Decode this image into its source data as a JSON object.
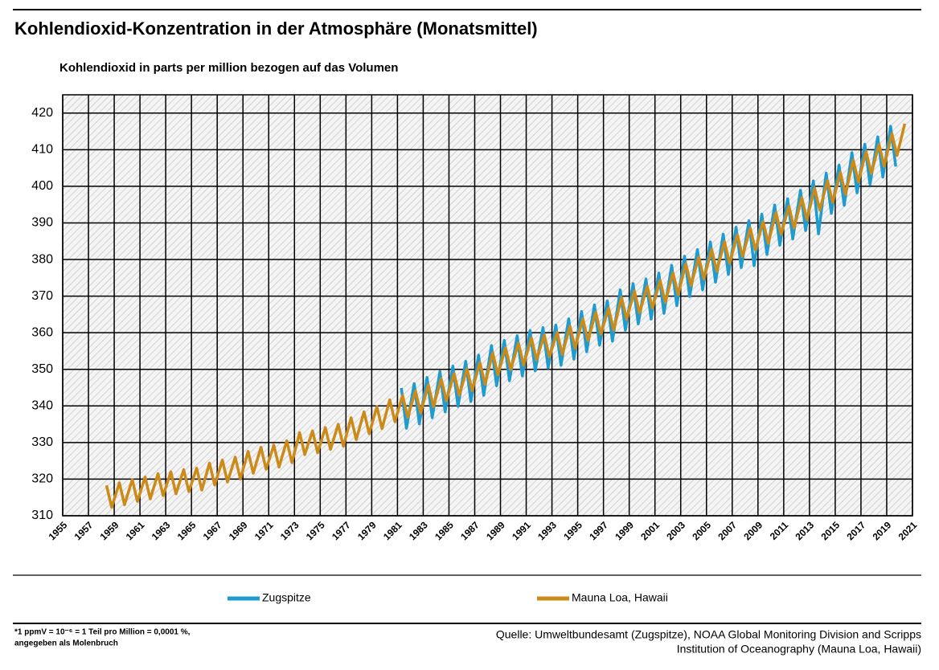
{
  "chart_data": {
    "type": "line",
    "title": "Kohlendioxid-Konzentration in der Atmosphäre (Monatsmittel)",
    "y_label": "Kohlendioxid in parts per million bezogen auf das Volumen",
    "xlim": [
      1955,
      2021
    ],
    "xticks": [
      1955,
      1957,
      1959,
      1961,
      1963,
      1965,
      1967,
      1969,
      1971,
      1973,
      1975,
      1977,
      1979,
      1981,
      1983,
      1985,
      1987,
      1989,
      1991,
      1993,
      1995,
      1997,
      1999,
      2001,
      2003,
      2005,
      2007,
      2009,
      2011,
      2013,
      2015,
      2017,
      2019,
      2021
    ],
    "ylim": [
      310,
      425
    ],
    "yticks": [
      310,
      320,
      330,
      340,
      350,
      360,
      370,
      380,
      390,
      400,
      410,
      420
    ],
    "grid": true,
    "series": [
      {
        "name": "Zugspitze",
        "color": "#1f9bcf",
        "x": [
          1981.3,
          1981.7,
          1982.3,
          1982.7,
          1983.3,
          1983.7,
          1984.3,
          1984.7,
          1985.3,
          1985.7,
          1986.3,
          1986.7,
          1987.3,
          1987.7,
          1988.3,
          1988.7,
          1989.3,
          1989.7,
          1990.3,
          1990.7,
          1991.3,
          1991.7,
          1992.3,
          1992.7,
          1993.3,
          1993.7,
          1994.3,
          1994.7,
          1995.3,
          1995.7,
          1996.3,
          1996.7,
          1997.3,
          1997.7,
          1998.3,
          1998.7,
          1999.3,
          1999.7,
          2000.3,
          2000.7,
          2001.3,
          2001.7,
          2002.3,
          2002.7,
          2003.3,
          2003.7,
          2004.3,
          2004.7,
          2005.3,
          2005.7,
          2006.3,
          2006.7,
          2007.3,
          2007.7,
          2008.3,
          2008.7,
          2009.3,
          2009.7,
          2010.3,
          2010.7,
          2011.3,
          2011.7,
          2012.3,
          2012.7,
          2013.3,
          2013.7,
          2014.3,
          2014.7,
          2015.3,
          2015.7,
          2016.3,
          2016.7,
          2017.3,
          2017.7,
          2018.3,
          2018.7,
          2019.3,
          2019.7
        ],
        "values": [
          344.9,
          333.9,
          346.1,
          335.1,
          347.8,
          336.8,
          349.4,
          338.4,
          350.9,
          339.9,
          352.2,
          341.2,
          353.9,
          342.9,
          356.5,
          345.5,
          357.9,
          346.9,
          359.2,
          348.2,
          360.6,
          349.6,
          361.4,
          350.4,
          362.1,
          351.1,
          363.8,
          352.8,
          365.8,
          354.8,
          367.6,
          356.6,
          368.7,
          357.7,
          371.7,
          360.7,
          373.4,
          362.4,
          374.7,
          363.7,
          376.3,
          365.3,
          378.4,
          367.4,
          380.9,
          369.9,
          382.7,
          371.7,
          384.8,
          373.8,
          386.9,
          375.9,
          388.8,
          377.8,
          390.6,
          378.3,
          392.4,
          381.4,
          394.9,
          383.9,
          396.6,
          385.6,
          398.9,
          387.9,
          401.5,
          387.0,
          403.6,
          392.6,
          405.8,
          394.8,
          409.2,
          398.2,
          411.5,
          400.5,
          413.5,
          402.5,
          416.4,
          405.4
        ]
      },
      {
        "name": "Mauna Loa, Hawaii",
        "color": "#cc8a18",
        "x": [
          1958.4,
          1958.8,
          1959.4,
          1959.8,
          1960.4,
          1960.8,
          1961.4,
          1961.8,
          1962.4,
          1962.8,
          1963.4,
          1963.8,
          1964.4,
          1964.8,
          1965.4,
          1965.8,
          1966.4,
          1966.8,
          1967.4,
          1967.8,
          1968.4,
          1968.8,
          1969.4,
          1969.8,
          1970.4,
          1970.8,
          1971.4,
          1971.8,
          1972.4,
          1972.8,
          1973.4,
          1973.8,
          1974.4,
          1974.8,
          1975.4,
          1975.8,
          1976.4,
          1976.8,
          1977.4,
          1977.8,
          1978.4,
          1978.8,
          1979.4,
          1979.8,
          1980.4,
          1980.8,
          1981.4,
          1981.8,
          1982.4,
          1982.8,
          1983.4,
          1983.8,
          1984.4,
          1984.8,
          1985.4,
          1985.8,
          1986.4,
          1986.8,
          1987.4,
          1987.8,
          1988.4,
          1988.8,
          1989.4,
          1989.8,
          1990.4,
          1990.8,
          1991.4,
          1991.8,
          1992.4,
          1992.8,
          1993.4,
          1993.8,
          1994.4,
          1994.8,
          1995.4,
          1995.8,
          1996.4,
          1996.8,
          1997.4,
          1997.8,
          1998.4,
          1998.8,
          1999.4,
          1999.8,
          2000.4,
          2000.8,
          2001.4,
          2001.8,
          2002.4,
          2002.8,
          2003.4,
          2003.8,
          2004.4,
          2004.8,
          2005.4,
          2005.8,
          2006.4,
          2006.8,
          2007.4,
          2007.8,
          2008.4,
          2008.8,
          2009.4,
          2009.8,
          2010.4,
          2010.8,
          2011.4,
          2011.8,
          2012.4,
          2012.8,
          2013.4,
          2013.8,
          2014.4,
          2014.8,
          2015.4,
          2015.8,
          2016.4,
          2016.8,
          2017.4,
          2017.8,
          2018.4,
          2018.8,
          2019.4,
          2019.8,
          2020.4
        ],
        "values": [
          318.3,
          312.3,
          319.0,
          313.0,
          319.9,
          313.9,
          320.6,
          314.6,
          321.5,
          315.5,
          322.0,
          316.0,
          322.6,
          316.6,
          323.0,
          317.0,
          324.4,
          318.4,
          325.2,
          319.2,
          326.0,
          320.0,
          327.6,
          321.6,
          328.7,
          322.7,
          329.3,
          323.3,
          330.5,
          324.5,
          332.7,
          326.7,
          333.2,
          327.2,
          334.1,
          328.1,
          335.0,
          329.0,
          336.8,
          330.8,
          338.4,
          332.4,
          339.8,
          333.8,
          341.7,
          335.7,
          342.9,
          336.9,
          344.1,
          338.1,
          345.8,
          339.8,
          347.4,
          341.4,
          348.9,
          342.9,
          350.2,
          344.2,
          351.9,
          345.9,
          354.5,
          348.5,
          355.9,
          349.9,
          357.2,
          351.2,
          358.6,
          352.6,
          359.4,
          353.4,
          360.1,
          354.1,
          361.8,
          355.8,
          363.8,
          357.8,
          365.6,
          359.6,
          366.7,
          360.7,
          369.7,
          363.7,
          371.4,
          365.4,
          372.7,
          366.7,
          374.3,
          368.3,
          376.4,
          370.4,
          378.9,
          372.9,
          380.7,
          374.7,
          382.8,
          376.8,
          384.9,
          378.9,
          386.8,
          380.8,
          388.6,
          382.6,
          390.4,
          384.4,
          392.9,
          386.9,
          394.6,
          388.6,
          396.9,
          390.9,
          399.5,
          393.5,
          401.6,
          395.6,
          403.8,
          397.8,
          407.2,
          401.2,
          409.5,
          403.5,
          411.5,
          405.5,
          414.4,
          408.4,
          417.1
        ]
      }
    ],
    "footnote": [
      "*1 ppmV = 10⁻⁶ = 1 Teil pro Million = 0,0001 %,",
      "angegeben als Molenbruch"
    ],
    "source": [
      "Quelle: Umweltbundesamt (Zugspitze), NOAA Global Monitoring Division and Scripps",
      "Institution of Oceanography  (Mauna Loa, Hawaii)"
    ]
  }
}
